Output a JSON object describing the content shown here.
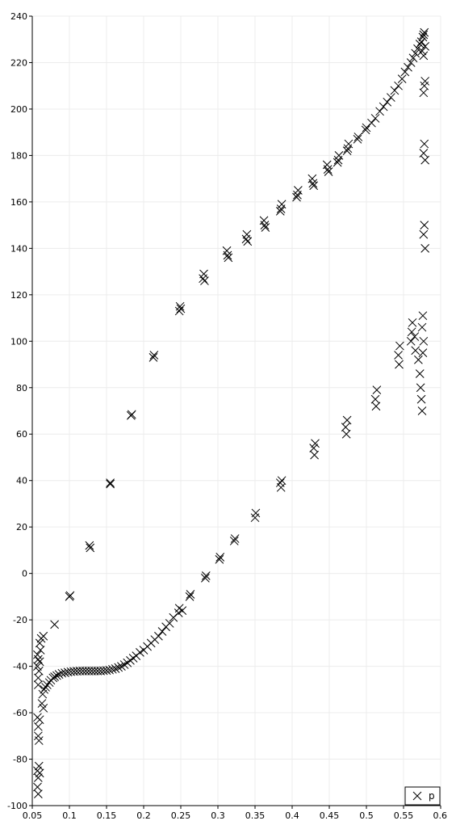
{
  "chart_data": {
    "type": "scatter",
    "title": "",
    "xlabel": "",
    "ylabel": "",
    "xlim": [
      0.05,
      0.6
    ],
    "ylim": [
      -100,
      240
    ],
    "x_ticks": [
      {
        "value": 0.05,
        "label": "0.05"
      },
      {
        "value": 0.1,
        "label": "0.1"
      },
      {
        "value": 0.15,
        "label": "0.15"
      },
      {
        "value": 0.2,
        "label": "0.2"
      },
      {
        "value": 0.25,
        "label": "0.25"
      },
      {
        "value": 0.3,
        "label": "0.3"
      },
      {
        "value": 0.35,
        "label": "0.35"
      },
      {
        "value": 0.4,
        "label": "0.4"
      },
      {
        "value": 0.45,
        "label": "0.45"
      },
      {
        "value": 0.5,
        "label": "0.5"
      },
      {
        "value": 0.55,
        "label": "0.55"
      },
      {
        "value": 0.6,
        "label": "0.6"
      }
    ],
    "y_ticks": [
      {
        "value": -100,
        "label": "-100"
      },
      {
        "value": -80,
        "label": "-80"
      },
      {
        "value": -60,
        "label": "-60"
      },
      {
        "value": -40,
        "label": "-40"
      },
      {
        "value": -20,
        "label": "-20"
      },
      {
        "value": 0,
        "label": "0"
      },
      {
        "value": 20,
        "label": "20"
      },
      {
        "value": 40,
        "label": "40"
      },
      {
        "value": 60,
        "label": "60"
      },
      {
        "value": 80,
        "label": "80"
      },
      {
        "value": 100,
        "label": "100"
      },
      {
        "value": 120,
        "label": "120"
      },
      {
        "value": 140,
        "label": "140"
      },
      {
        "value": 160,
        "label": "160"
      },
      {
        "value": 180,
        "label": "180"
      },
      {
        "value": 200,
        "label": "200"
      },
      {
        "value": 220,
        "label": "220"
      },
      {
        "value": 240,
        "label": "240"
      }
    ],
    "grid": true,
    "legend": {
      "position": "bottom-right",
      "marker": "x"
    },
    "marker": "x",
    "series": [
      {
        "name": "p",
        "color": "#000000",
        "points": [
          [
            0.057,
            -35
          ],
          [
            0.057,
            -40
          ],
          [
            0.058,
            -45
          ],
          [
            0.058,
            -37
          ],
          [
            0.059,
            -42
          ],
          [
            0.058,
            -48
          ],
          [
            0.06,
            -38
          ],
          [
            0.057,
            -62
          ],
          [
            0.058,
            -66
          ],
          [
            0.06,
            -63
          ],
          [
            0.058,
            -70
          ],
          [
            0.059,
            -72
          ],
          [
            0.057,
            -85
          ],
          [
            0.058,
            -88
          ],
          [
            0.057,
            -92
          ],
          [
            0.058,
            -95
          ],
          [
            0.059,
            -83
          ],
          [
            0.06,
            -86
          ],
          [
            0.06,
            -30
          ],
          [
            0.062,
            -28
          ],
          [
            0.065,
            -27
          ],
          [
            0.061,
            -33
          ],
          [
            0.063,
            -56
          ],
          [
            0.064,
            -52
          ],
          [
            0.065,
            -58
          ],
          [
            0.066,
            -50
          ],
          [
            0.068,
            -49
          ],
          [
            0.07,
            -48
          ],
          [
            0.073,
            -47
          ],
          [
            0.075,
            -46
          ],
          [
            0.078,
            -45
          ],
          [
            0.08,
            -44.5
          ],
          [
            0.083,
            -44
          ],
          [
            0.086,
            -43.5
          ],
          [
            0.09,
            -43
          ],
          [
            0.094,
            -42.8
          ],
          [
            0.098,
            -42.5
          ],
          [
            0.102,
            -42.3
          ],
          [
            0.106,
            -42.2
          ],
          [
            0.11,
            -42.1
          ],
          [
            0.114,
            -42
          ],
          [
            0.118,
            -42
          ],
          [
            0.122,
            -42
          ],
          [
            0.126,
            -42
          ],
          [
            0.13,
            -42
          ],
          [
            0.134,
            -42
          ],
          [
            0.138,
            -42
          ],
          [
            0.142,
            -42
          ],
          [
            0.146,
            -41.9
          ],
          [
            0.15,
            -41.8
          ],
          [
            0.154,
            -41.6
          ],
          [
            0.158,
            -41.3
          ],
          [
            0.162,
            -41
          ],
          [
            0.166,
            -40.5
          ],
          [
            0.17,
            -40
          ],
          [
            0.174,
            -39.3
          ],
          [
            0.178,
            -38.5
          ],
          [
            0.182,
            -37.5
          ],
          [
            0.186,
            -36.5
          ],
          [
            0.19,
            -35.5
          ],
          [
            0.195,
            -34
          ],
          [
            0.2,
            -33
          ],
          [
            0.205,
            -31.5
          ],
          [
            0.21,
            -30
          ],
          [
            0.215,
            -28.5
          ],
          [
            0.22,
            -27
          ],
          [
            0.225,
            -25
          ],
          [
            0.23,
            -23
          ],
          [
            0.235,
            -21.5
          ],
          [
            0.24,
            -19
          ],
          [
            0.08,
            -22
          ],
          [
            0.1,
            -10
          ],
          [
            0.101,
            -9.5
          ],
          [
            0.128,
            11
          ],
          [
            0.127,
            12
          ],
          [
            0.155,
            39
          ],
          [
            0.155,
            38.5
          ],
          [
            0.183,
            68
          ],
          [
            0.184,
            68.5
          ],
          [
            0.213,
            93
          ],
          [
            0.214,
            94
          ],
          [
            0.248,
            113
          ],
          [
            0.249,
            115
          ],
          [
            0.25,
            114
          ],
          [
            0.28,
            127
          ],
          [
            0.281,
            129
          ],
          [
            0.282,
            126
          ],
          [
            0.313,
            137
          ],
          [
            0.312,
            139
          ],
          [
            0.314,
            136
          ],
          [
            0.338,
            144
          ],
          [
            0.339,
            146
          ],
          [
            0.34,
            143
          ],
          [
            0.363,
            150
          ],
          [
            0.362,
            152
          ],
          [
            0.364,
            149
          ],
          [
            0.385,
            157
          ],
          [
            0.386,
            159
          ],
          [
            0.384,
            156
          ],
          [
            0.407,
            163
          ],
          [
            0.408,
            165
          ],
          [
            0.406,
            162
          ],
          [
            0.428,
            168
          ],
          [
            0.427,
            170
          ],
          [
            0.429,
            167
          ],
          [
            0.448,
            174
          ],
          [
            0.447,
            176
          ],
          [
            0.449,
            173
          ],
          [
            0.462,
            178
          ],
          [
            0.463,
            180
          ],
          [
            0.461,
            177
          ],
          [
            0.475,
            183
          ],
          [
            0.476,
            185
          ],
          [
            0.474,
            182
          ],
          [
            0.488,
            187
          ],
          [
            0.489,
            188
          ],
          [
            0.499,
            191
          ],
          [
            0.5,
            192
          ],
          [
            0.507,
            194
          ],
          [
            0.512,
            196
          ],
          [
            0.518,
            199
          ],
          [
            0.523,
            201
          ],
          [
            0.528,
            203
          ],
          [
            0.533,
            205
          ],
          [
            0.538,
            208
          ],
          [
            0.543,
            210
          ],
          [
            0.548,
            213
          ],
          [
            0.552,
            216
          ],
          [
            0.556,
            218
          ],
          [
            0.56,
            220
          ],
          [
            0.563,
            222
          ],
          [
            0.566,
            224
          ],
          [
            0.569,
            226
          ],
          [
            0.572,
            228
          ],
          [
            0.574,
            229
          ],
          [
            0.576,
            231
          ],
          [
            0.577,
            232
          ],
          [
            0.578,
            233
          ],
          [
            0.575,
            225
          ],
          [
            0.577,
            223
          ],
          [
            0.579,
            227
          ],
          [
            0.578,
            210
          ],
          [
            0.577,
            207
          ],
          [
            0.579,
            212
          ],
          [
            0.578,
            185
          ],
          [
            0.577,
            181
          ],
          [
            0.579,
            178
          ],
          [
            0.578,
            150
          ],
          [
            0.577,
            146
          ],
          [
            0.579,
            140
          ],
          [
            0.247,
            -17
          ],
          [
            0.248,
            -15
          ],
          [
            0.252,
            -16
          ],
          [
            0.262,
            -10
          ],
          [
            0.263,
            -9
          ],
          [
            0.283,
            -2
          ],
          [
            0.284,
            -1
          ],
          [
            0.302,
            6
          ],
          [
            0.303,
            7
          ],
          [
            0.322,
            14
          ],
          [
            0.323,
            15
          ],
          [
            0.35,
            24
          ],
          [
            0.351,
            26
          ],
          [
            0.385,
            37
          ],
          [
            0.384,
            39
          ],
          [
            0.386,
            40
          ],
          [
            0.43,
            51
          ],
          [
            0.429,
            54
          ],
          [
            0.431,
            56
          ],
          [
            0.473,
            60
          ],
          [
            0.472,
            63
          ],
          [
            0.474,
            66
          ],
          [
            0.513,
            72
          ],
          [
            0.512,
            75
          ],
          [
            0.514,
            79
          ],
          [
            0.544,
            90
          ],
          [
            0.543,
            94
          ],
          [
            0.545,
            98
          ],
          [
            0.56,
            100
          ],
          [
            0.561,
            104
          ],
          [
            0.562,
            108
          ],
          [
            0.565,
            102
          ],
          [
            0.566,
            96
          ],
          [
            0.57,
            92
          ],
          [
            0.572,
            86
          ],
          [
            0.573,
            80
          ],
          [
            0.574,
            75
          ],
          [
            0.575,
            70
          ],
          [
            0.576,
            95
          ],
          [
            0.577,
            100
          ],
          [
            0.575,
            106
          ],
          [
            0.576,
            111
          ]
        ]
      }
    ]
  }
}
